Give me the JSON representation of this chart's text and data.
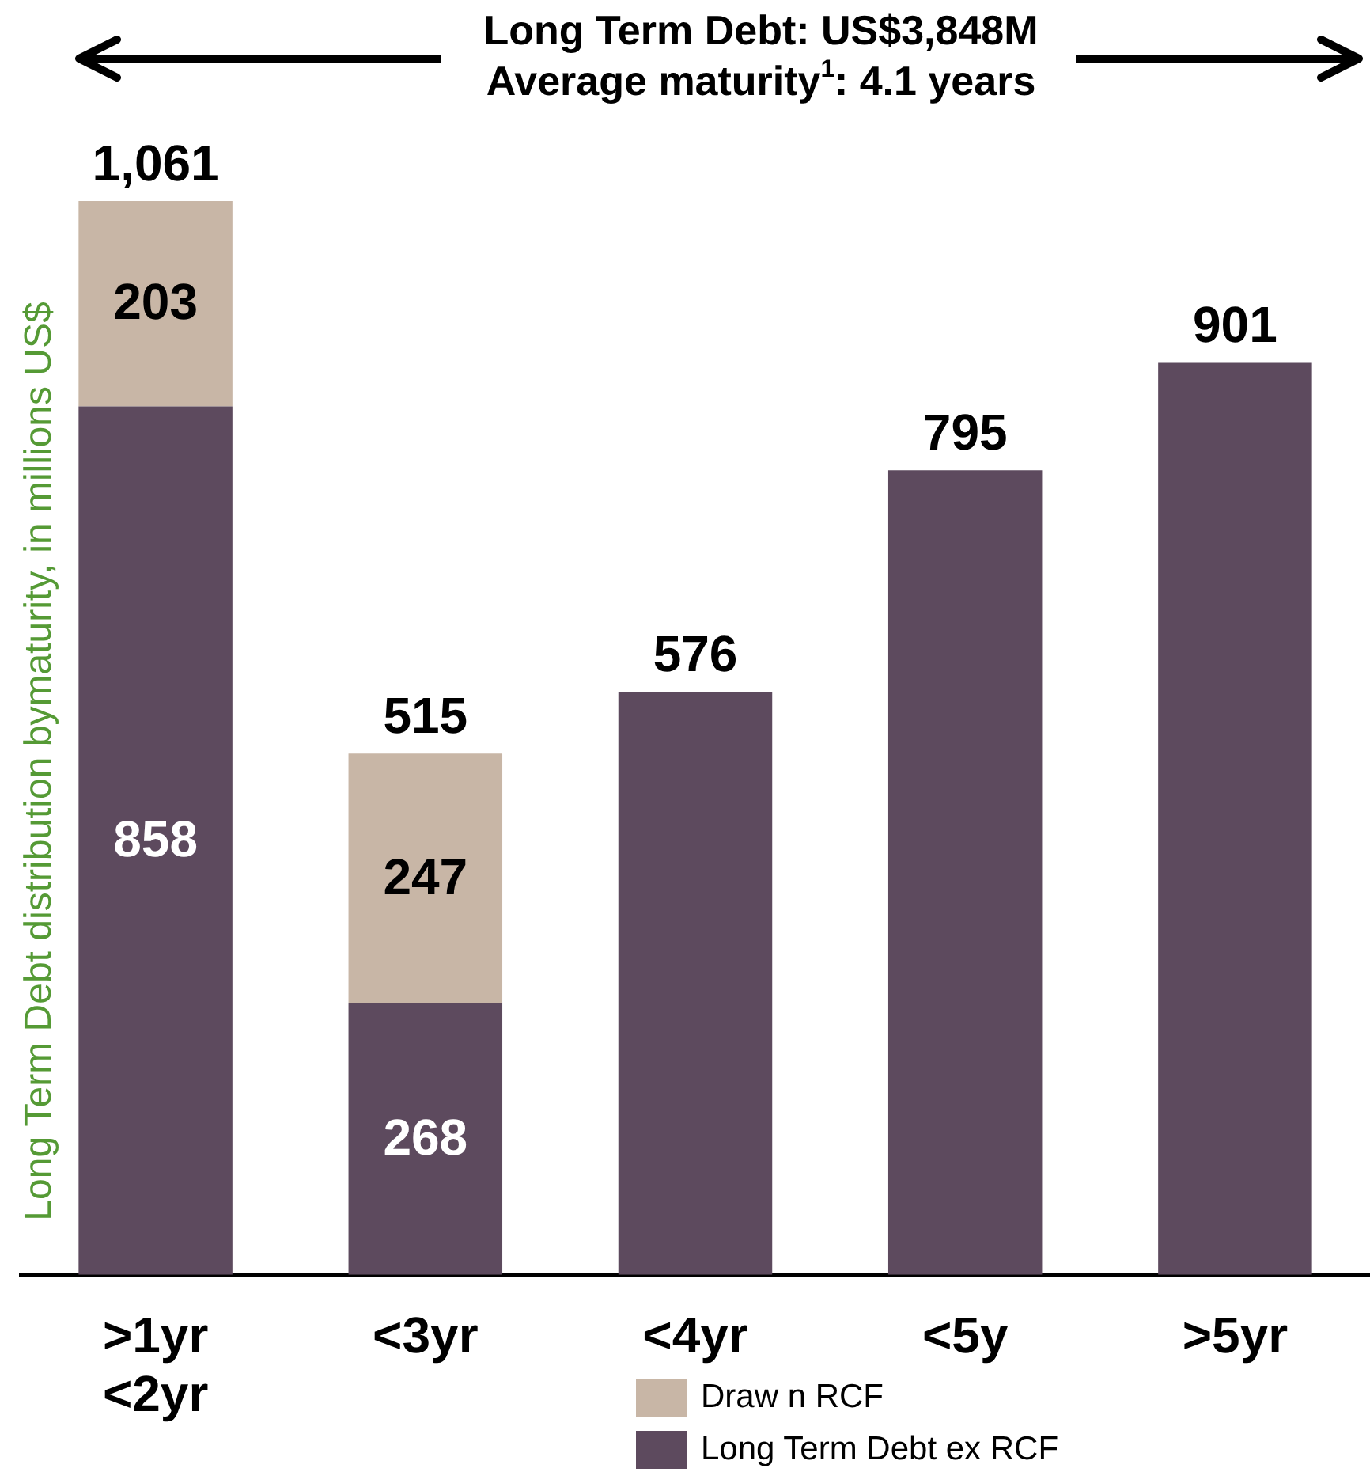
{
  "chart_data": {
    "type": "bar",
    "title": "Long Term Debt: US$3,848M",
    "subtitle": "Average maturity$^{1}$: 4.1 years",
    "ylabel": "Long Term Debt distribution bymaturity, in millions US$",
    "categories": [
      ">1yr\n<2yr",
      "<3yr",
      "<4yr",
      "<5y",
      ">5yr"
    ],
    "series": [
      {
        "name": "Long Term Debt ex RCF",
        "color": "#5d4a5e",
        "values": [
          858,
          268,
          576,
          795,
          901
        ],
        "value_labels": [
          "858",
          "268",
          null,
          null,
          null
        ]
      },
      {
        "name": "Draw n RCF",
        "color": "#c8b6a6",
        "values": [
          203,
          247,
          null,
          null,
          null
        ],
        "value_labels": [
          "203",
          "247",
          null,
          null,
          null
        ]
      }
    ],
    "stacked": true,
    "ylim": [
      0,
      1061
    ],
    "totals": [
      "1,061",
      "515",
      "576",
      "795",
      "901"
    ],
    "legend": "bottom",
    "grid": false,
    "tick_labels": "x"
  }
}
